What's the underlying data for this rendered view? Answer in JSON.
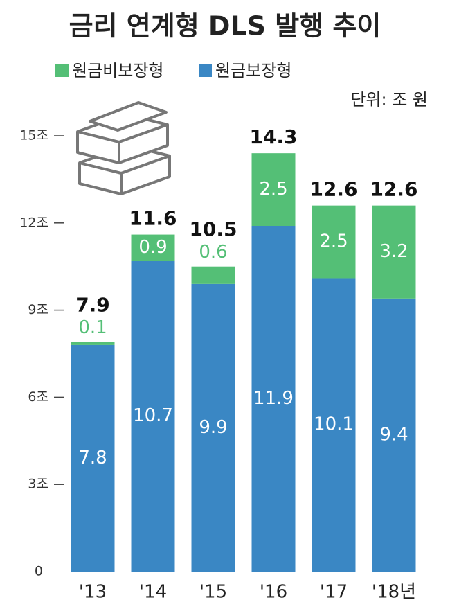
{
  "chart_data": {
    "type": "stacked-bar",
    "title": "금리 연계형 DLS 발행 추이",
    "unit": "단위: 조 원",
    "categories": [
      "'13",
      "'14",
      "'15",
      "'16",
      "'17",
      "'18년"
    ],
    "series": [
      {
        "name": "원금보장형",
        "color": "#3a87c4",
        "values": [
          7.8,
          10.7,
          9.9,
          11.9,
          10.1,
          9.4
        ]
      },
      {
        "name": "원금비보장형",
        "color": "#54bf76",
        "values": [
          0.1,
          0.9,
          0.6,
          2.5,
          2.5,
          3.2
        ]
      }
    ],
    "totals": [
      7.9,
      11.6,
      10.5,
      14.3,
      12.6,
      12.6
    ],
    "ylim": [
      0,
      15
    ],
    "yticks": [
      0,
      {
        "value": 3,
        "label": "3조"
      },
      {
        "value": 6,
        "label": "6조"
      },
      {
        "value": 9,
        "label": "9조"
      },
      {
        "value": 12,
        "label": "12조"
      },
      {
        "value": 15,
        "label": "15조"
      }
    ]
  }
}
